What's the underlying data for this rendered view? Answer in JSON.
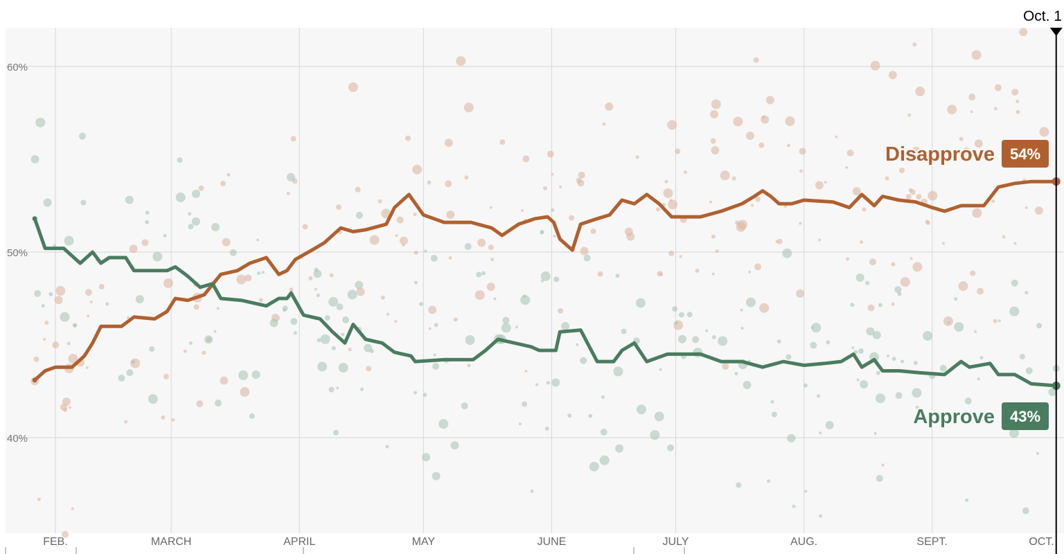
{
  "chart_data": {
    "type": "line",
    "title": "",
    "xlabel": "",
    "ylabel": "",
    "x_units": "day of year",
    "ylim": [
      36.5,
      63
    ],
    "grid": true,
    "y_ticks": [
      {
        "value": 60,
        "label": "60%"
      },
      {
        "value": 50,
        "label": "50%"
      },
      {
        "value": 40,
        "label": "40%"
      }
    ],
    "x_ticks": [
      {
        "value": 31,
        "label": "FEB."
      },
      {
        "value": 59,
        "label": "MARCH"
      },
      {
        "value": 90,
        "label": "APRIL"
      },
      {
        "value": 120,
        "label": "MAY"
      },
      {
        "value": 151,
        "label": "JUNE"
      },
      {
        "value": 181,
        "label": "JULY"
      },
      {
        "value": 212,
        "label": "AUG."
      },
      {
        "value": 243,
        "label": "SEPT."
      },
      {
        "value": 273,
        "label": "OCT."
      }
    ],
    "current_marker": {
      "value": 273,
      "label": "Oct. 1"
    },
    "series": [
      {
        "name": "Disapprove",
        "color": "#b0602f",
        "end_label": "54%",
        "points": [
          [
            26,
            43.1
          ],
          [
            28.5,
            43.6
          ],
          [
            31,
            43.8
          ],
          [
            35,
            43.8
          ],
          [
            38,
            44.4
          ],
          [
            40,
            45.1
          ],
          [
            42,
            46.0
          ],
          [
            47,
            46.0
          ],
          [
            50,
            46.5
          ],
          [
            55,
            46.4
          ],
          [
            58,
            46.8
          ],
          [
            60,
            47.5
          ],
          [
            63,
            47.4
          ],
          [
            67,
            47.7
          ],
          [
            71,
            48.8
          ],
          [
            75,
            49.0
          ],
          [
            78,
            49.4
          ],
          [
            82,
            49.7
          ],
          [
            85,
            48.8
          ],
          [
            87,
            49.0
          ],
          [
            89,
            49.6
          ],
          [
            93,
            50.1
          ],
          [
            96,
            50.5
          ],
          [
            100,
            51.3
          ],
          [
            103,
            51.1
          ],
          [
            106,
            51.2
          ],
          [
            111,
            51.5
          ],
          [
            113,
            52.4
          ],
          [
            116.5,
            53.1
          ],
          [
            120,
            52.0
          ],
          [
            125,
            51.6
          ],
          [
            131.5,
            51.6
          ],
          [
            136.5,
            51.3
          ],
          [
            139,
            50.9
          ],
          [
            143,
            51.5
          ],
          [
            147,
            51.8
          ],
          [
            150,
            51.9
          ],
          [
            151.5,
            51.6
          ],
          [
            153,
            50.7
          ],
          [
            156,
            50.1
          ],
          [
            158,
            51.5
          ],
          [
            162,
            51.8
          ],
          [
            165,
            52.0
          ],
          [
            168,
            52.8
          ],
          [
            171,
            52.6
          ],
          [
            174,
            53.1
          ],
          [
            177,
            52.6
          ],
          [
            180,
            51.9
          ],
          [
            187,
            51.9
          ],
          [
            192,
            52.2
          ],
          [
            197,
            52.6
          ],
          [
            200,
            53.0
          ],
          [
            202,
            53.3
          ],
          [
            204,
            53.0
          ],
          [
            206,
            52.6
          ],
          [
            209,
            52.6
          ],
          [
            212,
            52.8
          ],
          [
            219,
            52.7
          ],
          [
            223,
            52.4
          ],
          [
            226,
            53.1
          ],
          [
            229,
            52.5
          ],
          [
            231,
            53.0
          ],
          [
            235,
            52.8
          ],
          [
            239,
            52.7
          ],
          [
            243,
            52.4
          ],
          [
            246,
            52.2
          ],
          [
            250,
            52.5
          ],
          [
            255.5,
            52.5
          ],
          [
            259,
            53.5
          ],
          [
            263,
            53.7
          ],
          [
            267,
            53.8
          ],
          [
            273,
            53.8
          ]
        ]
      },
      {
        "name": "Approve",
        "color": "#4a7c5f",
        "end_label": "43%",
        "points": [
          [
            26,
            51.8
          ],
          [
            28.5,
            50.2
          ],
          [
            33,
            50.2
          ],
          [
            37,
            49.4
          ],
          [
            40,
            50.0
          ],
          [
            42,
            49.4
          ],
          [
            44,
            49.7
          ],
          [
            48,
            49.7
          ],
          [
            50,
            49.0
          ],
          [
            58,
            49.0
          ],
          [
            60,
            49.2
          ],
          [
            63,
            48.7
          ],
          [
            66,
            48.1
          ],
          [
            69,
            48.3
          ],
          [
            71,
            47.5
          ],
          [
            76,
            47.4
          ],
          [
            82,
            47.1
          ],
          [
            85,
            47.5
          ],
          [
            87,
            47.5
          ],
          [
            88,
            47.8
          ],
          [
            91,
            46.6
          ],
          [
            95,
            46.4
          ],
          [
            98,
            45.7
          ],
          [
            101,
            45.1
          ],
          [
            103,
            46.1
          ],
          [
            106,
            45.3
          ],
          [
            110,
            45.1
          ],
          [
            113,
            44.6
          ],
          [
            117,
            44.4
          ],
          [
            118,
            44.1
          ],
          [
            125,
            44.2
          ],
          [
            132,
            44.2
          ],
          [
            135,
            44.7
          ],
          [
            138,
            45.3
          ],
          [
            142,
            45.1
          ],
          [
            146,
            44.9
          ],
          [
            148,
            44.7
          ],
          [
            152,
            44.7
          ],
          [
            153,
            45.7
          ],
          [
            158,
            45.8
          ],
          [
            162,
            44.1
          ],
          [
            166,
            44.1
          ],
          [
            168,
            44.7
          ],
          [
            171,
            45.1
          ],
          [
            174,
            44.1
          ],
          [
            179,
            44.5
          ],
          [
            187,
            44.5
          ],
          [
            192,
            44.1
          ],
          [
            197,
            44.1
          ],
          [
            202,
            43.8
          ],
          [
            207,
            44.1
          ],
          [
            212,
            43.9
          ],
          [
            217,
            44.0
          ],
          [
            221,
            44.1
          ],
          [
            224,
            44.5
          ],
          [
            226,
            43.8
          ],
          [
            229,
            44.2
          ],
          [
            231,
            43.6
          ],
          [
            235,
            43.6
          ],
          [
            240,
            43.5
          ],
          [
            246,
            43.4
          ],
          [
            250,
            44.1
          ],
          [
            252,
            43.8
          ],
          [
            257,
            44.0
          ],
          [
            259,
            43.4
          ],
          [
            263,
            43.4
          ],
          [
            267,
            42.9
          ],
          [
            273,
            42.8
          ]
        ]
      }
    ]
  }
}
